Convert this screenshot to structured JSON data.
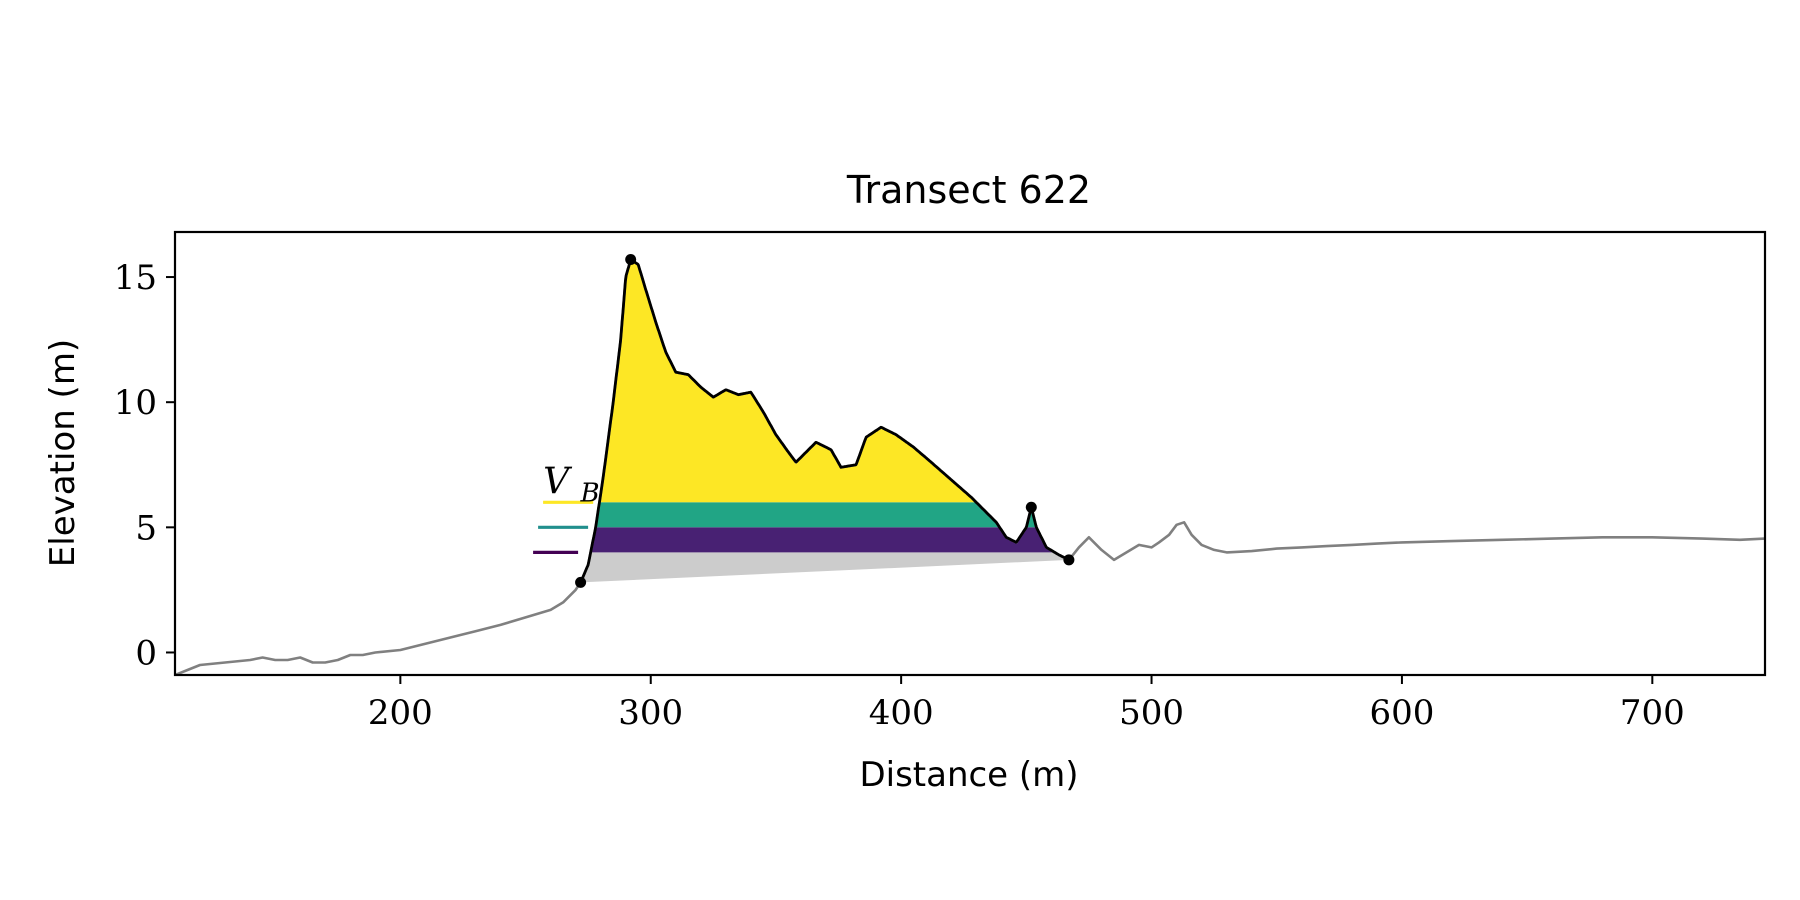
{
  "chart_data": {
    "type": "area",
    "title": "Transect 622",
    "xlabel": "Distance (m)",
    "ylabel": "Elevation (m)",
    "xlim": [
      110,
      745
    ],
    "ylim": [
      -0.9,
      16.8
    ],
    "xticks": [
      200,
      300,
      400,
      500,
      600,
      700
    ],
    "yticks": [
      0,
      5,
      10,
      15
    ],
    "grid": false,
    "legend": "none",
    "annotation": {
      "label": "V",
      "subscript": "B",
      "x": 257,
      "y": 6.2
    },
    "colors": {
      "profile": "#808080",
      "dune_outline": "#000000",
      "below_toe": "#cccccc",
      "band_low": "#482173",
      "band_mid": "#21a585",
      "band_high": "#fde725",
      "marker_low": "#440154",
      "marker_mid": "#218f8d",
      "marker_high": "#fde725"
    },
    "thresholds": [
      {
        "level": 4.0,
        "marker_x": [
          253,
          271
        ],
        "color_key": "marker_low"
      },
      {
        "level": 5.0,
        "marker_x": [
          255,
          275
        ],
        "color_key": "marker_mid"
      },
      {
        "level": 6.0,
        "marker_x": [
          257,
          277
        ],
        "color_key": "marker_high"
      }
    ],
    "points": [
      {
        "x": 272,
        "y": 2.8
      },
      {
        "x": 292,
        "y": 15.7
      },
      {
        "x": 452,
        "y": 5.8
      },
      {
        "x": 467,
        "y": 3.7
      }
    ],
    "profile": [
      [
        110,
        -0.9
      ],
      [
        115,
        -0.7
      ],
      [
        120,
        -0.5
      ],
      [
        130,
        -0.4
      ],
      [
        140,
        -0.3
      ],
      [
        145,
        -0.2
      ],
      [
        150,
        -0.3
      ],
      [
        155,
        -0.3
      ],
      [
        160,
        -0.2
      ],
      [
        165,
        -0.4
      ],
      [
        170,
        -0.4
      ],
      [
        175,
        -0.3
      ],
      [
        180,
        -0.1
      ],
      [
        185,
        -0.1
      ],
      [
        190,
        0.0
      ],
      [
        200,
        0.1
      ],
      [
        210,
        0.35
      ],
      [
        220,
        0.6
      ],
      [
        230,
        0.85
      ],
      [
        240,
        1.1
      ],
      [
        250,
        1.4
      ],
      [
        260,
        1.7
      ],
      [
        265,
        2.0
      ],
      [
        270,
        2.5
      ],
      [
        272,
        2.8
      ],
      [
        275,
        3.5
      ],
      [
        278,
        5.0
      ],
      [
        281,
        7.0
      ],
      [
        285,
        10.0
      ],
      [
        288,
        12.5
      ],
      [
        290,
        15.0
      ],
      [
        292,
        15.7
      ],
      [
        295,
        15.5
      ],
      [
        298,
        14.5
      ],
      [
        302,
        13.2
      ],
      [
        306,
        12.0
      ],
      [
        310,
        11.2
      ],
      [
        315,
        11.1
      ],
      [
        320,
        10.6
      ],
      [
        325,
        10.2
      ],
      [
        330,
        10.5
      ],
      [
        335,
        10.3
      ],
      [
        340,
        10.4
      ],
      [
        345,
        9.6
      ],
      [
        350,
        8.7
      ],
      [
        355,
        8.0
      ],
      [
        358,
        7.6
      ],
      [
        362,
        8.0
      ],
      [
        366,
        8.4
      ],
      [
        372,
        8.1
      ],
      [
        376,
        7.4
      ],
      [
        382,
        7.5
      ],
      [
        386,
        8.6
      ],
      [
        392,
        9.0
      ],
      [
        398,
        8.7
      ],
      [
        405,
        8.2
      ],
      [
        412,
        7.6
      ],
      [
        420,
        6.9
      ],
      [
        428,
        6.2
      ],
      [
        434,
        5.6
      ],
      [
        438,
        5.2
      ],
      [
        442,
        4.6
      ],
      [
        446,
        4.4
      ],
      [
        450,
        5.0
      ],
      [
        452,
        5.8
      ],
      [
        454,
        5.0
      ],
      [
        458,
        4.2
      ],
      [
        463,
        3.9
      ],
      [
        467,
        3.7
      ],
      [
        471,
        4.2
      ],
      [
        475,
        4.6
      ],
      [
        480,
        4.1
      ],
      [
        485,
        3.7
      ],
      [
        490,
        4.0
      ],
      [
        495,
        4.3
      ],
      [
        500,
        4.2
      ],
      [
        503,
        4.4
      ],
      [
        507,
        4.7
      ],
      [
        510,
        5.1
      ],
      [
        513,
        5.2
      ],
      [
        516,
        4.7
      ],
      [
        520,
        4.3
      ],
      [
        525,
        4.1
      ],
      [
        530,
        4.0
      ],
      [
        540,
        4.05
      ],
      [
        550,
        4.15
      ],
      [
        560,
        4.2
      ],
      [
        570,
        4.25
      ],
      [
        580,
        4.3
      ],
      [
        590,
        4.35
      ],
      [
        600,
        4.4
      ],
      [
        620,
        4.45
      ],
      [
        640,
        4.5
      ],
      [
        660,
        4.55
      ],
      [
        680,
        4.6
      ],
      [
        700,
        4.6
      ],
      [
        720,
        4.55
      ],
      [
        735,
        4.5
      ],
      [
        745,
        4.55
      ]
    ]
  }
}
